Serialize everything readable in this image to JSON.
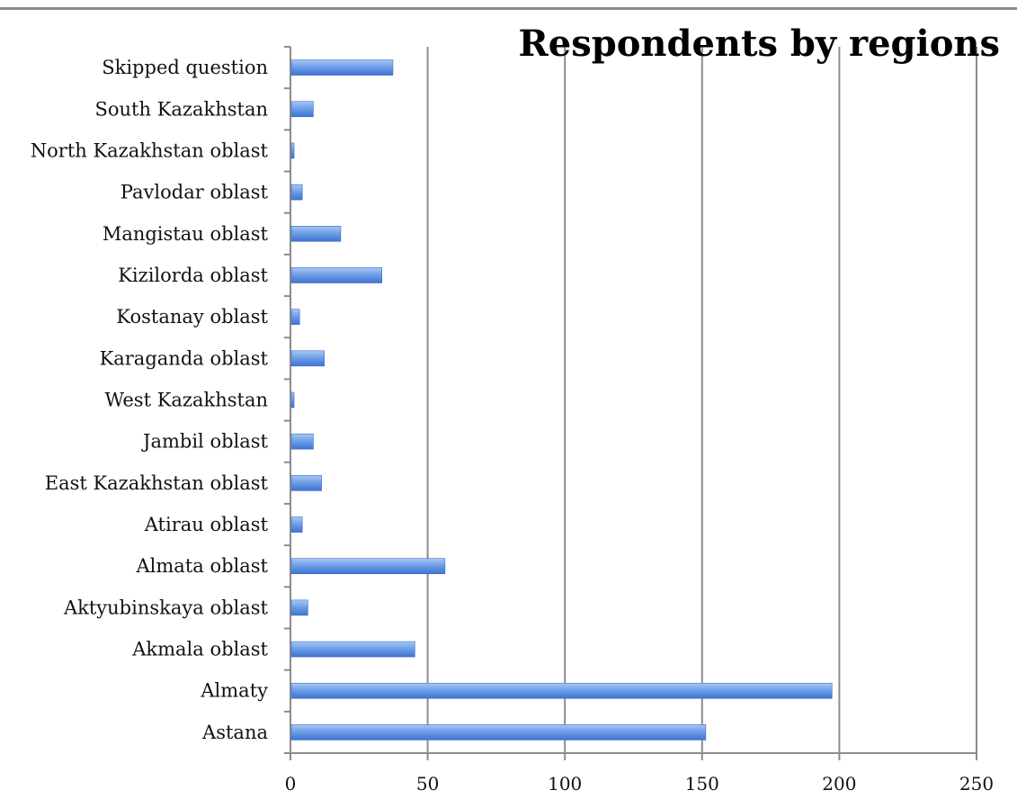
{
  "chart_data": {
    "type": "bar",
    "orientation": "horizontal",
    "title": "Respondents by regions",
    "xlabel": "",
    "ylabel": "",
    "xlim": [
      0,
      250
    ],
    "x_ticks": [
      0,
      50,
      100,
      150,
      200,
      250
    ],
    "grid": "vertical",
    "legend": "none",
    "bar_color": "#5b8fe0",
    "categories": [
      "Skipped question",
      "South Kazakhstan",
      "North Kazakhstan oblast",
      "Pavlodar oblast",
      "Mangistau oblast",
      "Kizilorda oblast",
      "Kostanay oblast",
      "Karaganda oblast",
      "West Kazakhstan",
      "Jambil oblast",
      "East Kazakhstan oblast",
      "Atirau oblast",
      "Almata oblast",
      "Aktyubinskaya oblast",
      "Akmala oblast",
      "Almaty",
      "Astana"
    ],
    "values": [
      37,
      8,
      1,
      4,
      18,
      33,
      3,
      12,
      1,
      8,
      11,
      4,
      56,
      6,
      45,
      197,
      151
    ]
  }
}
